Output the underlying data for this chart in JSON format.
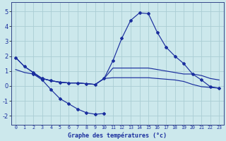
{
  "title": "Graphe des températures (°c)",
  "background_color": "#cce8ec",
  "grid_color": "#aacdd4",
  "line_color": "#1a2e9e",
  "spine_color": "#334488",
  "x_ticks": [
    0,
    1,
    2,
    3,
    4,
    5,
    6,
    7,
    8,
    9,
    10,
    11,
    12,
    13,
    14,
    15,
    16,
    17,
    18,
    19,
    20,
    21,
    22,
    23
  ],
  "ylim": [
    -2.6,
    5.6
  ],
  "yticks": [
    -2,
    -1,
    0,
    1,
    2,
    3,
    4,
    5
  ],
  "curve1_x": [
    0,
    1,
    2,
    3,
    4,
    5,
    6,
    7,
    8,
    9,
    10,
    11,
    12,
    13,
    14,
    15,
    16,
    17,
    18,
    19,
    20,
    21,
    22,
    23
  ],
  "curve1_y": [
    1.9,
    1.3,
    0.9,
    0.5,
    0.35,
    0.25,
    0.2,
    0.2,
    0.15,
    0.1,
    0.5,
    1.7,
    3.2,
    4.4,
    4.9,
    4.85,
    3.6,
    2.6,
    2.0,
    1.5,
    0.8,
    0.4,
    -0.05,
    -0.15
  ],
  "curve2_x": [
    0,
    1,
    2,
    3,
    4,
    5,
    6,
    7,
    8,
    9,
    10,
    11,
    12,
    13,
    14,
    15,
    16,
    17,
    18,
    19,
    20,
    21,
    22,
    23
  ],
  "curve2_y": [
    1.9,
    1.3,
    0.9,
    0.5,
    0.35,
    0.25,
    0.2,
    0.2,
    0.15,
    0.1,
    0.5,
    1.2,
    1.2,
    1.2,
    1.2,
    1.2,
    1.1,
    1.0,
    0.9,
    0.8,
    0.8,
    0.7,
    0.5,
    0.4
  ],
  "curve3_x": [
    0,
    1,
    2,
    3,
    4,
    5,
    6,
    7,
    8,
    9,
    10,
    11,
    12,
    13,
    14,
    15,
    16,
    17,
    18,
    19,
    20,
    21,
    22,
    23
  ],
  "curve3_y": [
    1.1,
    0.9,
    0.8,
    0.5,
    0.35,
    0.25,
    0.2,
    0.2,
    0.15,
    0.1,
    0.5,
    0.55,
    0.55,
    0.55,
    0.55,
    0.55,
    0.5,
    0.45,
    0.4,
    0.3,
    0.1,
    -0.05,
    -0.1,
    -0.15
  ],
  "curve4_x": [
    2,
    3,
    4,
    5,
    6,
    7,
    8,
    9,
    10
  ],
  "curve4_y": [
    0.8,
    0.4,
    -0.25,
    -0.85,
    -1.2,
    -1.55,
    -1.8,
    -1.9,
    -1.85
  ]
}
